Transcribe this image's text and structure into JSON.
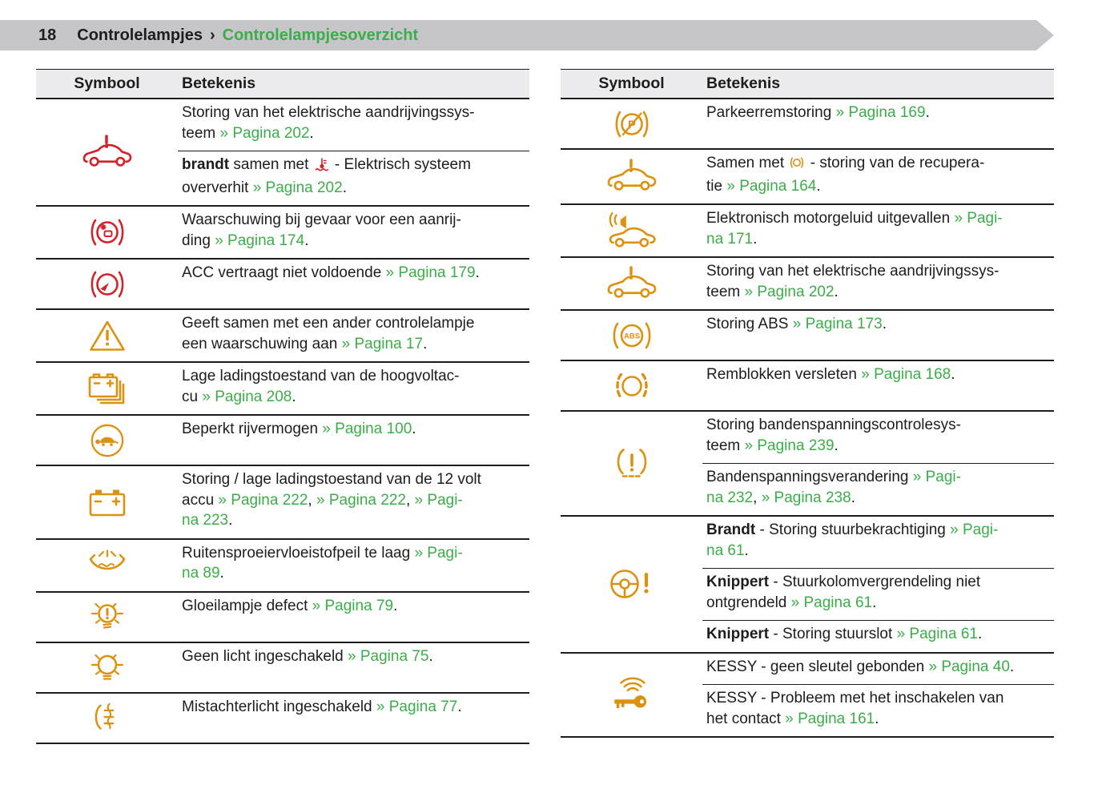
{
  "page": {
    "number": "18",
    "breadcrumb_section": "Controlelampjes",
    "breadcrumb_sep": "›",
    "breadcrumb_page": "Controlelampjesoverzicht"
  },
  "table_headers": {
    "symbol": "Symbool",
    "meaning": "Betekenis"
  },
  "colors": {
    "red": "#d2232c",
    "orange": "#dd920f",
    "green": "#3bae49",
    "band_gray": "#c6c6ca",
    "header_bg": "#ececee"
  },
  "tables": [
    {
      "name": "left-warning-lights-table",
      "rows": [
        {
          "icon": "car-warning-icon",
          "color": "red",
          "cells": [
            [
              {
                "t": "text",
                "v": "Storing van het elektrische aandrijvingssys-"
              },
              {
                "t": "br"
              },
              {
                "t": "text",
                "v": "teem "
              },
              {
                "t": "link",
                "v": "» Pagina 202"
              },
              {
                "t": "text",
                "v": "."
              }
            ],
            [
              {
                "t": "bold",
                "v": "brandt"
              },
              {
                "t": "text",
                "v": " samen met "
              },
              {
                "t": "icon",
                "v": "coolant-temperature-icon"
              },
              {
                "t": "text",
                "v": " - Elektrisch systeem"
              },
              {
                "t": "br"
              },
              {
                "t": "text",
                "v": "oververhit "
              },
              {
                "t": "link",
                "v": "» Pagina 202"
              },
              {
                "t": "text",
                "v": "."
              }
            ]
          ]
        },
        {
          "icon": "collision-warning-icon",
          "color": "red",
          "cells": [
            [
              {
                "t": "text",
                "v": "Waarschuwing bij gevaar voor een aanrij-"
              },
              {
                "t": "br"
              },
              {
                "t": "text",
                "v": "ding "
              },
              {
                "t": "link",
                "v": "» Pagina 174"
              },
              {
                "t": "text",
                "v": "."
              }
            ]
          ]
        },
        {
          "icon": "acc-warning-icon",
          "color": "red",
          "cells": [
            [
              {
                "t": "text",
                "v": "ACC vertraagt niet voldoende "
              },
              {
                "t": "link",
                "v": "» Pagina 179"
              },
              {
                "t": "text",
                "v": "."
              }
            ]
          ]
        },
        {
          "icon": "warning-triangle-icon",
          "color": "orange",
          "cells": [
            [
              {
                "t": "text",
                "v": "Geeft samen met een ander controlelampje"
              },
              {
                "t": "br"
              },
              {
                "t": "text",
                "v": "een waarschuwing aan "
              },
              {
                "t": "link",
                "v": "» Pagina 17"
              },
              {
                "t": "text",
                "v": "."
              }
            ]
          ]
        },
        {
          "icon": "hv-battery-icon",
          "color": "orange",
          "cells": [
            [
              {
                "t": "text",
                "v": "Lage ladingstoestand van de hoogvoltac-"
              },
              {
                "t": "br"
              },
              {
                "t": "text",
                "v": "cu "
              },
              {
                "t": "link",
                "v": "» Pagina 208"
              },
              {
                "t": "text",
                "v": "."
              }
            ]
          ]
        },
        {
          "icon": "reduced-power-turtle-icon",
          "color": "orange",
          "cells": [
            [
              {
                "t": "text",
                "v": "Beperkt rijvermogen "
              },
              {
                "t": "link",
                "v": "» Pagina 100"
              },
              {
                "t": "text",
                "v": "."
              }
            ]
          ]
        },
        {
          "icon": "battery-12v-icon",
          "color": "orange",
          "cells": [
            [
              {
                "t": "text",
                "v": "Storing / lage ladingstoestand van de 12 volt"
              },
              {
                "t": "br"
              },
              {
                "t": "text",
                "v": "accu "
              },
              {
                "t": "link",
                "v": "» Pagina 222"
              },
              {
                "t": "text",
                "v": ", "
              },
              {
                "t": "link",
                "v": "» Pagina 222"
              },
              {
                "t": "text",
                "v": ", "
              },
              {
                "t": "link",
                "v": "» Pagi-"
              },
              {
                "t": "br"
              },
              {
                "t": "link",
                "v": "na 223"
              },
              {
                "t": "text",
                "v": "."
              }
            ]
          ]
        },
        {
          "icon": "washer-fluid-icon",
          "color": "orange",
          "cells": [
            [
              {
                "t": "text",
                "v": "Ruitensproeiervloeistofpeil te laag "
              },
              {
                "t": "link",
                "v": "» Pagi-"
              },
              {
                "t": "br"
              },
              {
                "t": "link",
                "v": "na 89"
              },
              {
                "t": "text",
                "v": "."
              }
            ]
          ]
        },
        {
          "icon": "bulb-defect-icon",
          "color": "orange",
          "cells": [
            [
              {
                "t": "text",
                "v": "Gloeilampje defect "
              },
              {
                "t": "link",
                "v": "» Pagina 79"
              },
              {
                "t": "text",
                "v": "."
              }
            ]
          ]
        },
        {
          "icon": "lights-off-icon",
          "color": "orange",
          "cells": [
            [
              {
                "t": "text",
                "v": "Geen licht ingeschakeld "
              },
              {
                "t": "link",
                "v": "» Pagina 75"
              },
              {
                "t": "text",
                "v": "."
              }
            ]
          ]
        },
        {
          "icon": "rear-fog-light-icon",
          "color": "orange",
          "cells": [
            [
              {
                "t": "text",
                "v": "Mistachterlicht ingeschakeld "
              },
              {
                "t": "link",
                "v": "» Pagina 77"
              },
              {
                "t": "text",
                "v": "."
              }
            ]
          ]
        }
      ]
    },
    {
      "name": "right-warning-lights-table",
      "rows": [
        {
          "icon": "parking-brake-fault-icon",
          "color": "orange",
          "cells": [
            [
              {
                "t": "text",
                "v": "Parkeerremstoring "
              },
              {
                "t": "link",
                "v": "» Pagina 169"
              },
              {
                "t": "text",
                "v": "."
              }
            ]
          ]
        },
        {
          "icon": "car-warning-icon",
          "color": "orange",
          "cells": [
            [
              {
                "t": "text",
                "v": "Samen met "
              },
              {
                "t": "icon",
                "v": "recuperation-icon"
              },
              {
                "t": "text",
                "v": " - storing van de recupera-"
              },
              {
                "t": "br"
              },
              {
                "t": "text",
                "v": "tie "
              },
              {
                "t": "link",
                "v": "» Pagina 164"
              },
              {
                "t": "text",
                "v": "."
              }
            ]
          ]
        },
        {
          "icon": "engine-sound-icon",
          "color": "orange",
          "cells": [
            [
              {
                "t": "text",
                "v": "Elektronisch motorgeluid uitgevallen "
              },
              {
                "t": "link",
                "v": "» Pagi-"
              },
              {
                "t": "br"
              },
              {
                "t": "link",
                "v": "na 171"
              },
              {
                "t": "text",
                "v": "."
              }
            ]
          ]
        },
        {
          "icon": "car-warning-icon",
          "color": "orange",
          "cells": [
            [
              {
                "t": "text",
                "v": "Storing van het elektrische aandrijvingssys-"
              },
              {
                "t": "br"
              },
              {
                "t": "text",
                "v": "teem "
              },
              {
                "t": "link",
                "v": "» Pagina 202"
              },
              {
                "t": "text",
                "v": "."
              }
            ]
          ]
        },
        {
          "icon": "abs-fault-icon",
          "color": "orange",
          "cells": [
            [
              {
                "t": "text",
                "v": "Storing ABS "
              },
              {
                "t": "link",
                "v": "» Pagina 173"
              },
              {
                "t": "text",
                "v": "."
              }
            ]
          ]
        },
        {
          "icon": "brake-pads-icon",
          "color": "orange",
          "cells": [
            [
              {
                "t": "text",
                "v": "Remblokken versleten "
              },
              {
                "t": "link",
                "v": "» Pagina 168"
              },
              {
                "t": "text",
                "v": "."
              }
            ]
          ]
        },
        {
          "icon": "tyre-pressure-icon",
          "color": "orange",
          "cells": [
            [
              {
                "t": "text",
                "v": "Storing bandenspanningscontrolesys-"
              },
              {
                "t": "br"
              },
              {
                "t": "text",
                "v": "teem "
              },
              {
                "t": "link",
                "v": "» Pagina 239"
              },
              {
                "t": "text",
                "v": "."
              }
            ],
            [
              {
                "t": "text",
                "v": "Bandenspanningsverandering "
              },
              {
                "t": "link",
                "v": "» Pagi-"
              },
              {
                "t": "br"
              },
              {
                "t": "link",
                "v": "na 232"
              },
              {
                "t": "text",
                "v": ", "
              },
              {
                "t": "link",
                "v": "» Pagina 238"
              },
              {
                "t": "text",
                "v": "."
              }
            ]
          ]
        },
        {
          "icon": "steering-warning-icon",
          "color": "orange",
          "cells": [
            [
              {
                "t": "bold",
                "v": "Brandt"
              },
              {
                "t": "text",
                "v": " - Storing stuurbekrachtiging "
              },
              {
                "t": "link",
                "v": "» Pagi-"
              },
              {
                "t": "br"
              },
              {
                "t": "link",
                "v": "na 61"
              },
              {
                "t": "text",
                "v": "."
              }
            ],
            [
              {
                "t": "bold",
                "v": "Knippert"
              },
              {
                "t": "text",
                "v": " - Stuurkolomvergrendeling niet"
              },
              {
                "t": "br"
              },
              {
                "t": "text",
                "v": "ontgrendeld "
              },
              {
                "t": "link",
                "v": "» Pagina 61"
              },
              {
                "t": "text",
                "v": "."
              }
            ],
            [
              {
                "t": "bold",
                "v": "Knippert"
              },
              {
                "t": "text",
                "v": " - Storing stuurslot "
              },
              {
                "t": "link",
                "v": "» Pagina 61"
              },
              {
                "t": "text",
                "v": "."
              }
            ]
          ]
        },
        {
          "icon": "kessy-key-icon",
          "color": "orange",
          "cells": [
            [
              {
                "t": "text",
                "v": "KESSY - geen sleutel gebonden "
              },
              {
                "t": "link",
                "v": "» Pagina 40"
              },
              {
                "t": "text",
                "v": "."
              }
            ],
            [
              {
                "t": "text",
                "v": "KESSY - Probleem met het inschakelen van"
              },
              {
                "t": "br"
              },
              {
                "t": "text",
                "v": "het contact "
              },
              {
                "t": "link",
                "v": "» Pagina 161"
              },
              {
                "t": "text",
                "v": "."
              }
            ]
          ]
        }
      ]
    }
  ]
}
